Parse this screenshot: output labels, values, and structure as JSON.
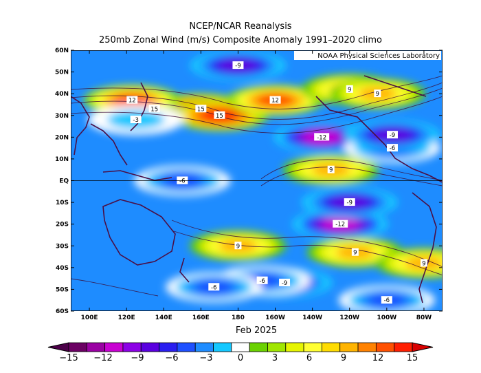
{
  "header": {
    "line1": "NCEP/NCAR Reanalysis",
    "line2": "250mb Zonal Wind (m/s) Composite Anomaly 1991–2020 climo",
    "credit": "NOAA Physical Sciences Laboratory"
  },
  "chart_data": {
    "type": "heatmap",
    "title": "250mb Zonal Wind (m/s) Composite Anomaly 1991–2020 climo",
    "subtitle": "NCEP/NCAR Reanalysis",
    "xlabel": "Feb 2025",
    "ylabel": "",
    "variable": "250mb Zonal Wind anomaly",
    "units": "m/s",
    "x_ticks": [
      "100E",
      "120E",
      "140E",
      "160E",
      "180",
      "160W",
      "140W",
      "120W",
      "100W",
      "80W"
    ],
    "x_tick_lon": [
      100,
      120,
      140,
      160,
      180,
      200,
      220,
      240,
      260,
      280
    ],
    "y_ticks": [
      "60N",
      "50N",
      "40N",
      "30N",
      "20N",
      "10N",
      "EQ",
      "10S",
      "20S",
      "30S",
      "40S",
      "50S",
      "60S"
    ],
    "y_tick_lat": [
      60,
      50,
      40,
      30,
      20,
      10,
      0,
      -10,
      -20,
      -30,
      -40,
      -50,
      -60
    ],
    "xlim": [
      90,
      290
    ],
    "ylim": [
      -60,
      60
    ],
    "colorbar": {
      "levels": [
        -15,
        -13.5,
        -12,
        -10.5,
        -9,
        -7.5,
        -6,
        -4.5,
        -3,
        -1.5,
        1.5,
        3,
        4.5,
        6,
        7.5,
        9,
        10.5,
        12,
        13.5,
        15
      ],
      "tick_labels": [
        "−15",
        "−12",
        "−9",
        "−6",
        "−3",
        "0",
        "3",
        "6",
        "9",
        "12",
        "15"
      ],
      "colors": [
        "#6b0063",
        "#9a00a3",
        "#c800d2",
        "#8c00e6",
        "#5a00e0",
        "#2a1ef0",
        "#1e50ff",
        "#1e8cff",
        "#14c8ff",
        "#ffffff",
        "#6ad200",
        "#a0e600",
        "#e6f500",
        "#ffff32",
        "#ffdc00",
        "#ffb400",
        "#ff8200",
        "#ff5000",
        "#ff1e00"
      ]
    },
    "features": [
      {
        "lon": 135,
        "lat": 33,
        "value": 15,
        "label": "15"
      },
      {
        "lon": 160,
        "lat": 33,
        "value": 15,
        "label": "15"
      },
      {
        "lon": 170,
        "lat": 30,
        "value": 15,
        "label": "15"
      },
      {
        "lon": 123,
        "lat": 37,
        "value": 12,
        "label": "12"
      },
      {
        "lon": 200,
        "lat": 37,
        "value": 12,
        "label": "12"
      },
      {
        "lon": 240,
        "lat": 42,
        "value": 9,
        "label": "9"
      },
      {
        "lon": 255,
        "lat": 40,
        "value": 9,
        "label": "9"
      },
      {
        "lon": 180,
        "lat": 53,
        "value": -9,
        "label": "-9"
      },
      {
        "lon": 225,
        "lat": 20,
        "value": -12,
        "label": "-12"
      },
      {
        "lon": 230,
        "lat": 5,
        "value": 9,
        "label": "9"
      },
      {
        "lon": 235,
        "lat": -20,
        "value": -12,
        "label": "-12"
      },
      {
        "lon": 240,
        "lat": -10,
        "value": -9,
        "label": "-9"
      },
      {
        "lon": 180,
        "lat": -30,
        "value": 9,
        "label": "9"
      },
      {
        "lon": 243,
        "lat": -33,
        "value": 9,
        "label": "9"
      },
      {
        "lon": 280,
        "lat": -38,
        "value": 9,
        "label": "9"
      },
      {
        "lon": 205,
        "lat": -47,
        "value": -9,
        "label": "-9"
      },
      {
        "lon": 150,
        "lat": 0,
        "value": -6,
        "label": "-6"
      },
      {
        "lon": 193,
        "lat": -46,
        "value": -6,
        "label": "-6"
      },
      {
        "lon": 167,
        "lat": -49,
        "value": -6,
        "label": "-6"
      },
      {
        "lon": 260,
        "lat": -55,
        "value": -6,
        "label": "-6"
      },
      {
        "lon": 263,
        "lat": 15,
        "value": -6,
        "label": "-6"
      },
      {
        "lon": 263,
        "lat": 21,
        "value": -9,
        "label": "-9"
      },
      {
        "lon": 125,
        "lat": 28,
        "value": -3,
        "label": "-3"
      }
    ]
  },
  "colorbar_labels": [
    "−15",
    "−12",
    "−9",
    "−6",
    "−3",
    "0",
    "3",
    "6",
    "9",
    "12",
    "15"
  ]
}
